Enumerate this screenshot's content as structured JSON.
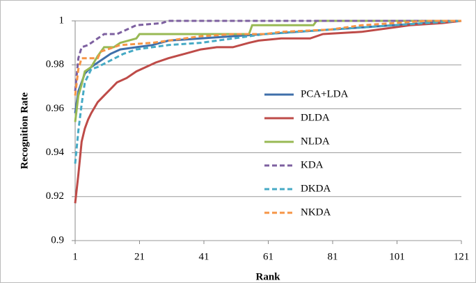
{
  "chart_data": {
    "type": "line",
    "xlabel": "Rank",
    "ylabel": "Recognition Rate",
    "xlim": [
      1,
      121
    ],
    "xticks": [
      1,
      21,
      41,
      61,
      81,
      101,
      121
    ],
    "ylim": [
      0.9,
      1
    ],
    "yticks": [
      0.9,
      0.92,
      0.94,
      0.96,
      0.98,
      1
    ],
    "grid": true,
    "legend": "right",
    "series": [
      {
        "name": "PCA+LDA",
        "color": "#3f6faa",
        "style": "solid",
        "x": [
          1,
          2,
          3,
          4,
          6,
          8,
          10,
          12,
          15,
          20,
          25,
          30,
          40,
          50,
          60,
          70,
          80,
          90,
          100,
          110,
          121
        ],
        "values": [
          0.958,
          0.968,
          0.972,
          0.976,
          0.979,
          0.981,
          0.983,
          0.985,
          0.987,
          0.988,
          0.989,
          0.991,
          0.992,
          0.993,
          0.994,
          0.995,
          0.996,
          0.997,
          0.998,
          0.999,
          1
        ]
      },
      {
        "name": "DLDA",
        "color": "#be4b48",
        "style": "solid",
        "x": [
          1,
          2,
          3,
          4,
          5,
          6,
          8,
          10,
          12,
          14,
          17,
          20,
          23,
          26,
          30,
          35,
          40,
          45,
          50,
          55,
          58,
          65,
          74,
          78,
          90,
          95,
          100,
          105,
          115,
          121
        ],
        "values": [
          0.917,
          0.93,
          0.945,
          0.951,
          0.955,
          0.958,
          0.963,
          0.966,
          0.969,
          0.972,
          0.974,
          0.977,
          0.979,
          0.981,
          0.983,
          0.985,
          0.987,
          0.988,
          0.988,
          0.99,
          0.991,
          0.992,
          0.992,
          0.994,
          0.995,
          0.996,
          0.997,
          0.998,
          0.999,
          1
        ]
      },
      {
        "name": "NLDA",
        "color": "#98b954",
        "style": "solid",
        "x": [
          1,
          2,
          3,
          4,
          6,
          8,
          10,
          13,
          15,
          20,
          21,
          40,
          55,
          56,
          75,
          76,
          121
        ],
        "values": [
          0.954,
          0.966,
          0.971,
          0.977,
          0.979,
          0.984,
          0.988,
          0.988,
          0.99,
          0.992,
          0.994,
          0.994,
          0.994,
          0.998,
          0.998,
          1,
          1
        ]
      },
      {
        "name": "KDA",
        "color": "#7d60a0",
        "style": "dashed",
        "x": [
          1,
          2,
          3,
          5,
          8,
          10,
          14,
          17,
          20,
          28,
          30,
          121
        ],
        "values": [
          0.968,
          0.983,
          0.988,
          0.989,
          0.992,
          0.994,
          0.994,
          0.996,
          0.998,
          0.999,
          1,
          1
        ]
      },
      {
        "name": "DKDA",
        "color": "#46aac5",
        "style": "dashed",
        "x": [
          1,
          2,
          3,
          4,
          6,
          8,
          12,
          16,
          20,
          25,
          30,
          40,
          50,
          60,
          70,
          80,
          90,
          100,
          110,
          121
        ],
        "values": [
          0.935,
          0.95,
          0.962,
          0.972,
          0.978,
          0.979,
          0.982,
          0.985,
          0.987,
          0.988,
          0.989,
          0.99,
          0.992,
          0.994,
          0.995,
          0.996,
          0.997,
          0.998,
          0.999,
          1
        ]
      },
      {
        "name": "NKDA",
        "color": "#f69546",
        "style": "dashed",
        "x": [
          1,
          2,
          3,
          8,
          9,
          15,
          25,
          40,
          50,
          60,
          65,
          80,
          90,
          100,
          110,
          121
        ],
        "values": [
          0.966,
          0.978,
          0.983,
          0.983,
          0.986,
          0.989,
          0.99,
          0.993,
          0.994,
          0.994,
          0.995,
          0.996,
          0.998,
          0.999,
          1,
          1
        ]
      }
    ]
  }
}
